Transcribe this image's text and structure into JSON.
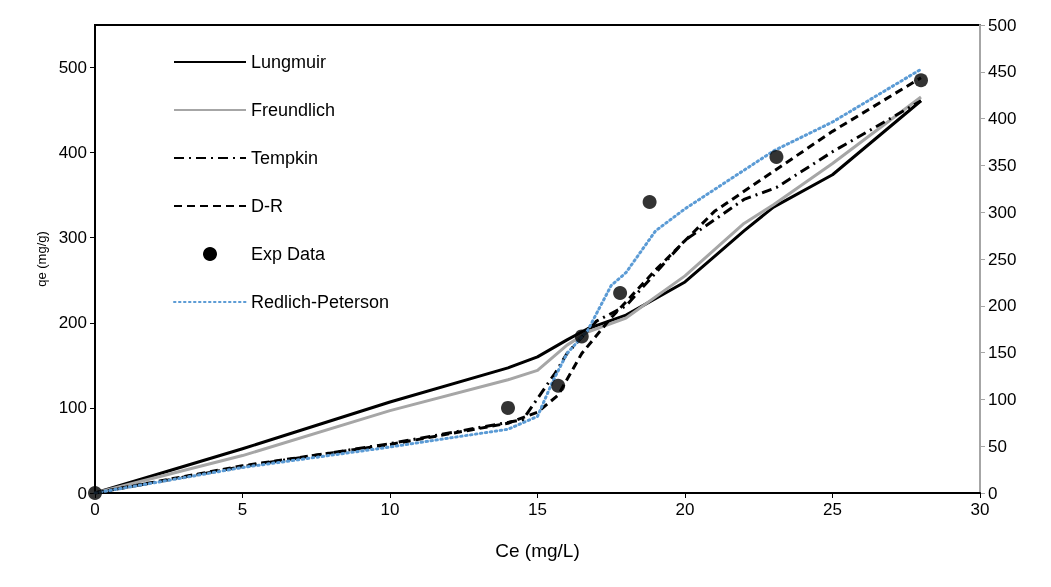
{
  "chart_data": {
    "type": "line",
    "xlabel": "Ce (mg/L)",
    "ylabel": "qe (mg/g)",
    "xlim": [
      0,
      30
    ],
    "xticks": [
      0,
      5,
      10,
      15,
      20,
      25,
      30
    ],
    "ylim": [
      0,
      550
    ],
    "yticks": [
      0,
      100,
      200,
      300,
      400,
      500
    ],
    "y2lim": [
      0,
      500
    ],
    "y2ticks": [
      0,
      50,
      100,
      150,
      200,
      250,
      300,
      350,
      400,
      450,
      500
    ],
    "grid": false,
    "legend": "top left",
    "series": [
      {
        "name": "Lungmuir",
        "color": "#000000",
        "line_style": "solid",
        "marker": "none",
        "x": [
          0,
          5,
          10,
          14,
          15,
          16,
          16.7,
          18,
          20,
          22,
          23,
          25,
          28
        ],
        "values": [
          0,
          52,
          107,
          147,
          160,
          180,
          193,
          209,
          248,
          308,
          336,
          374,
          461
        ]
      },
      {
        "name": "Freundlich",
        "axis": "y2",
        "color": "#a6a6a6",
        "line_style": "solid",
        "marker": "none",
        "x": [
          0,
          5,
          10,
          14,
          15,
          16,
          16.7,
          18,
          20,
          22,
          23,
          25,
          28
        ],
        "values": [
          0,
          40,
          88,
          121,
          131,
          158,
          172,
          187,
          232,
          288,
          308,
          352,
          423
        ]
      },
      {
        "name": "Tempkin",
        "color": "#000000",
        "line_style": "dashdot",
        "marker": "none",
        "x": [
          0,
          5,
          10,
          14,
          14.5,
          15.6,
          16,
          17,
          18,
          20,
          22,
          23.1,
          25,
          28
        ],
        "values": [
          0,
          31,
          58,
          83,
          86,
          141,
          164,
          202,
          220,
          297,
          345,
          359,
          401,
          461
        ]
      },
      {
        "name": "D-R",
        "color": "#000000",
        "line_style": "dashed",
        "marker": "none",
        "x": [
          0,
          5,
          10,
          14,
          15,
          15.7,
          16.5,
          17.5,
          19,
          21,
          23,
          25,
          28
        ],
        "values": [
          0,
          32,
          57,
          82,
          95,
          115,
          164,
          206,
          262,
          331,
          378,
          425,
          488
        ]
      },
      {
        "name": "Exp Data",
        "type": "scatter",
        "color": "#000000",
        "marker": "circle",
        "x": [
          0,
          14,
          15.7,
          16.5,
          17.8,
          18.8,
          23.1,
          28
        ],
        "values": [
          0,
          100,
          126,
          184,
          235,
          342,
          395,
          485
        ]
      },
      {
        "name": "Redlich-Peterson",
        "color": "#5b9bd5",
        "line_style": "dotted",
        "marker": "none",
        "x": [
          0,
          5,
          10,
          14,
          15,
          15.5,
          16,
          16.7,
          17.5,
          18,
          19,
          20,
          23,
          25,
          28
        ],
        "values": [
          0,
          30,
          54,
          75,
          90,
          130,
          164,
          191,
          244,
          259,
          308,
          334,
          402,
          436,
          498
        ]
      }
    ]
  }
}
